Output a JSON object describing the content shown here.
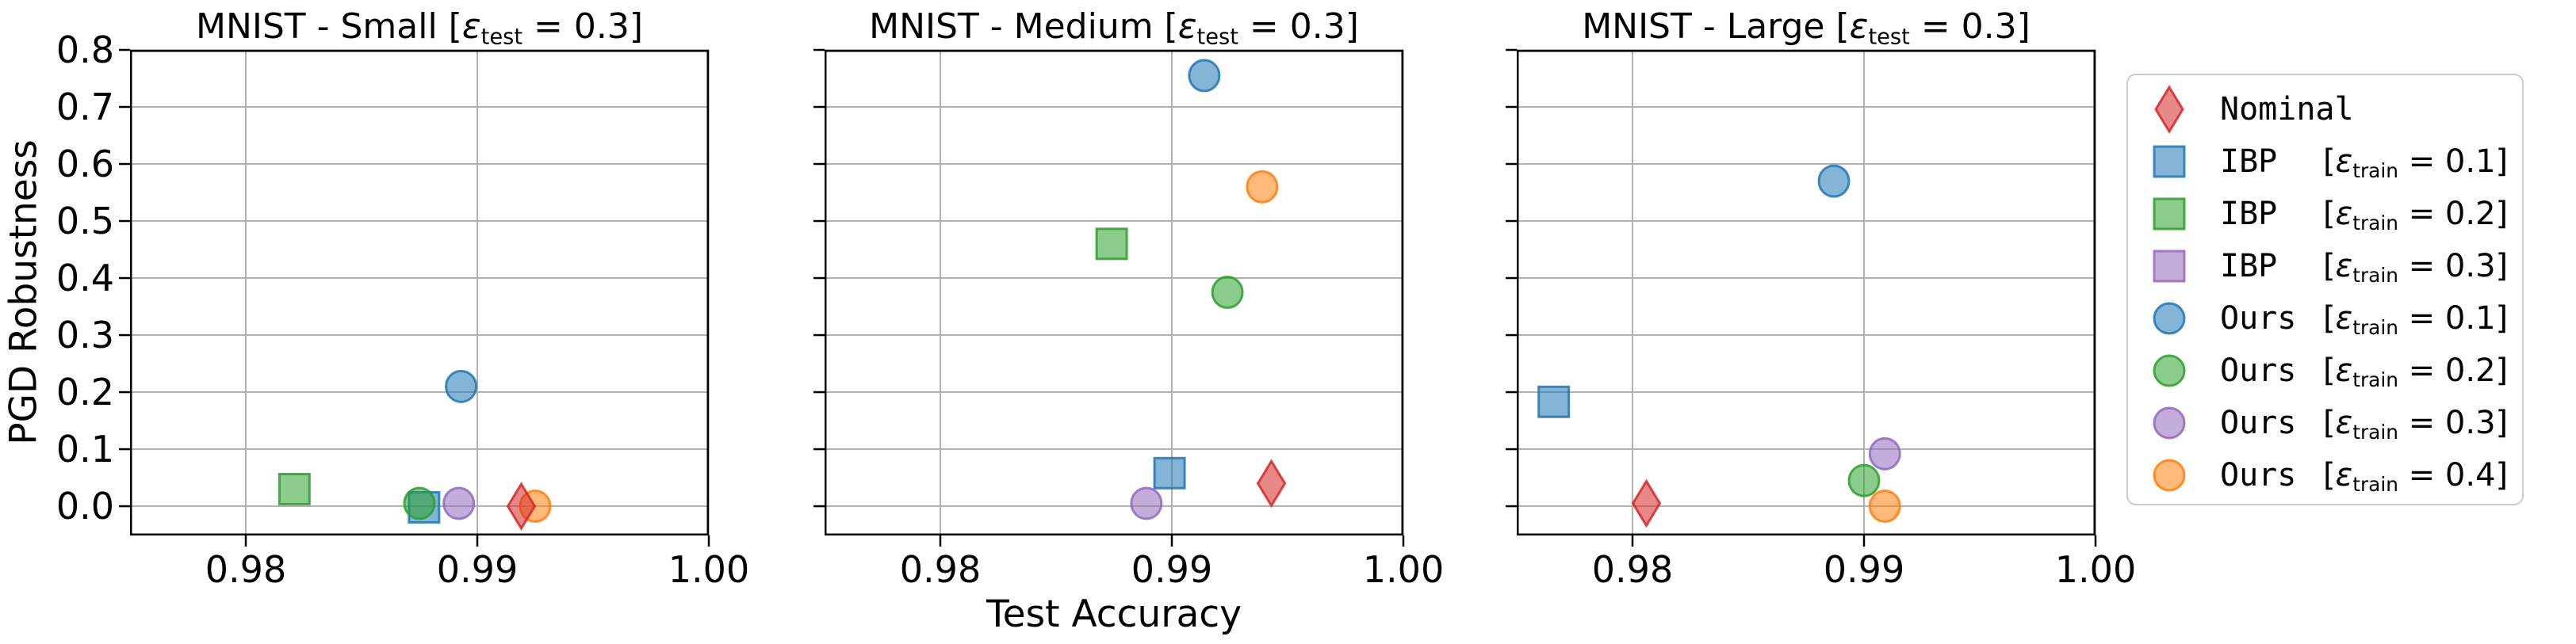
{
  "figure": {
    "ylabel": "PGD Robustness",
    "xlabel": "Test Accuracy",
    "background": "#ffffff"
  },
  "colors": {
    "blue": "#1f77b4",
    "orange": "#ff7f0e",
    "green": "#2ca02c",
    "red": "#d62728",
    "purple": "#9467bd",
    "grid": "#b3b3b3",
    "spine": "#000000",
    "legend_border": "#cccccc"
  },
  "axes": {
    "xlim": [
      0.975,
      1.0
    ],
    "ylim": [
      -0.0513,
      0.8
    ],
    "grid": true,
    "xticks": [
      "0.98",
      "0.99",
      "1.00"
    ],
    "xtick_values": [
      0.98,
      0.99,
      1.0
    ],
    "yticks": [
      "0.0",
      "0.1",
      "0.2",
      "0.3",
      "0.4",
      "0.5",
      "0.6",
      "0.7",
      "0.8"
    ],
    "ytick_values": [
      0.0,
      0.1,
      0.2,
      0.3,
      0.4,
      0.5,
      0.6,
      0.7,
      0.8
    ]
  },
  "titles": [
    {
      "prefix": "MNIST - Small [",
      "eps": "ε",
      "sub": "test",
      "suffix": " = 0.3]"
    },
    {
      "prefix": "MNIST - Medium [",
      "eps": "ε",
      "sub": "test",
      "suffix": " = 0.3]"
    },
    {
      "prefix": "MNIST - Large [",
      "eps": "ε",
      "sub": "test",
      "suffix": " = 0.3]"
    }
  ],
  "chart_data": [
    {
      "type": "scatter",
      "title": "MNIST - Small [eps_test = 0.3]",
      "xlabel": "Test Accuracy",
      "ylabel": "PGD Robustness",
      "series": [
        {
          "name": "IBP [eps_train = 0.1]",
          "marker": "square",
          "color": "blue",
          "points": [
            [
              0.9877,
              -0.002
            ]
          ]
        },
        {
          "name": "IBP [eps_train = 0.2]",
          "marker": "square",
          "color": "green",
          "points": [
            [
              0.9821,
              0.03
            ]
          ]
        },
        {
          "name": "Ours [eps_train = 0.1]",
          "marker": "circle",
          "color": "blue",
          "points": [
            [
              0.9893,
              0.21
            ]
          ]
        },
        {
          "name": "Ours [eps_train = 0.2]",
          "marker": "circle",
          "color": "green",
          "points": [
            [
              0.9875,
              0.005
            ]
          ]
        },
        {
          "name": "Ours [eps_train = 0.3]",
          "marker": "circle",
          "color": "purple",
          "points": [
            [
              0.9892,
              0.005
            ]
          ]
        },
        {
          "name": "Ours [eps_train = 0.4]",
          "marker": "circle",
          "color": "orange",
          "points": [
            [
              0.9925,
              0.0
            ]
          ]
        },
        {
          "name": "Nominal",
          "marker": "diamond",
          "color": "red",
          "points": [
            [
              0.9919,
              0.0
            ]
          ]
        }
      ]
    },
    {
      "type": "scatter",
      "title": "MNIST - Medium [eps_test = 0.3]",
      "xlabel": "Test Accuracy",
      "ylabel": "PGD Robustness",
      "series": [
        {
          "name": "IBP [eps_train = 0.1]",
          "marker": "square",
          "color": "blue",
          "points": [
            [
              0.9899,
              0.058
            ]
          ]
        },
        {
          "name": "IBP [eps_train = 0.2]",
          "marker": "square",
          "color": "green",
          "points": [
            [
              0.9874,
              0.46
            ]
          ]
        },
        {
          "name": "Ours [eps_train = 0.1]",
          "marker": "circle",
          "color": "blue",
          "points": [
            [
              0.9914,
              0.755
            ]
          ]
        },
        {
          "name": "Ours [eps_train = 0.2]",
          "marker": "circle",
          "color": "green",
          "points": [
            [
              0.9924,
              0.375
            ]
          ]
        },
        {
          "name": "Ours [eps_train = 0.3]",
          "marker": "circle",
          "color": "purple",
          "points": [
            [
              0.9889,
              0.005
            ]
          ]
        },
        {
          "name": "Ours [eps_train = 0.4]",
          "marker": "circle",
          "color": "orange",
          "points": [
            [
              0.9939,
              0.56
            ]
          ]
        },
        {
          "name": "Nominal",
          "marker": "diamond",
          "color": "red",
          "points": [
            [
              0.9943,
              0.04
            ]
          ]
        }
      ]
    },
    {
      "type": "scatter",
      "title": "MNIST - Large [eps_test = 0.3]",
      "xlabel": "Test Accuracy",
      "ylabel": "PGD Robustness",
      "series": [
        {
          "name": "IBP [eps_train = 0.1]",
          "marker": "square",
          "color": "blue",
          "points": [
            [
              0.9766,
              0.183
            ]
          ]
        },
        {
          "name": "Ours [eps_train = 0.1]",
          "marker": "circle",
          "color": "blue",
          "points": [
            [
              0.9887,
              0.57
            ]
          ]
        },
        {
          "name": "Ours [eps_train = 0.2]",
          "marker": "circle",
          "color": "green",
          "points": [
            [
              0.99,
              0.045
            ]
          ]
        },
        {
          "name": "Ours [eps_train = 0.3]",
          "marker": "circle",
          "color": "purple",
          "points": [
            [
              0.9909,
              0.092
            ]
          ]
        },
        {
          "name": "Ours [eps_train = 0.4]",
          "marker": "circle",
          "color": "orange",
          "points": [
            [
              0.9909,
              0.0
            ]
          ]
        },
        {
          "name": "Nominal",
          "marker": "diamond",
          "color": "red",
          "points": [
            [
              0.9806,
              0.005
            ]
          ]
        }
      ]
    }
  ],
  "legend": {
    "items": [
      {
        "name": "Nominal",
        "marker": "diamond",
        "color": "red",
        "eps_prefix": "",
        "eps_sub": "",
        "eps_suffix": ""
      },
      {
        "name": "IBP",
        "marker": "square",
        "color": "blue",
        "eps_prefix": "[",
        "eps_sub": "train",
        "eps_suffix": " = 0.1]"
      },
      {
        "name": "IBP",
        "marker": "square",
        "color": "green",
        "eps_prefix": "[",
        "eps_sub": "train",
        "eps_suffix": " = 0.2]"
      },
      {
        "name": "IBP",
        "marker": "square",
        "color": "purple",
        "eps_prefix": "[",
        "eps_sub": "train",
        "eps_suffix": " = 0.3]"
      },
      {
        "name": "Ours",
        "marker": "circle",
        "color": "blue",
        "eps_prefix": "[",
        "eps_sub": "train",
        "eps_suffix": " = 0.1]"
      },
      {
        "name": "Ours",
        "marker": "circle",
        "color": "green",
        "eps_prefix": "[",
        "eps_sub": "train",
        "eps_suffix": " = 0.2]"
      },
      {
        "name": "Ours",
        "marker": "circle",
        "color": "purple",
        "eps_prefix": "[",
        "eps_sub": "train",
        "eps_suffix": " = 0.3]"
      },
      {
        "name": "Ours",
        "marker": "circle",
        "color": "orange",
        "eps_prefix": "[",
        "eps_sub": "train",
        "eps_suffix": " = 0.4]"
      }
    ],
    "eps_symbol": "ε"
  }
}
